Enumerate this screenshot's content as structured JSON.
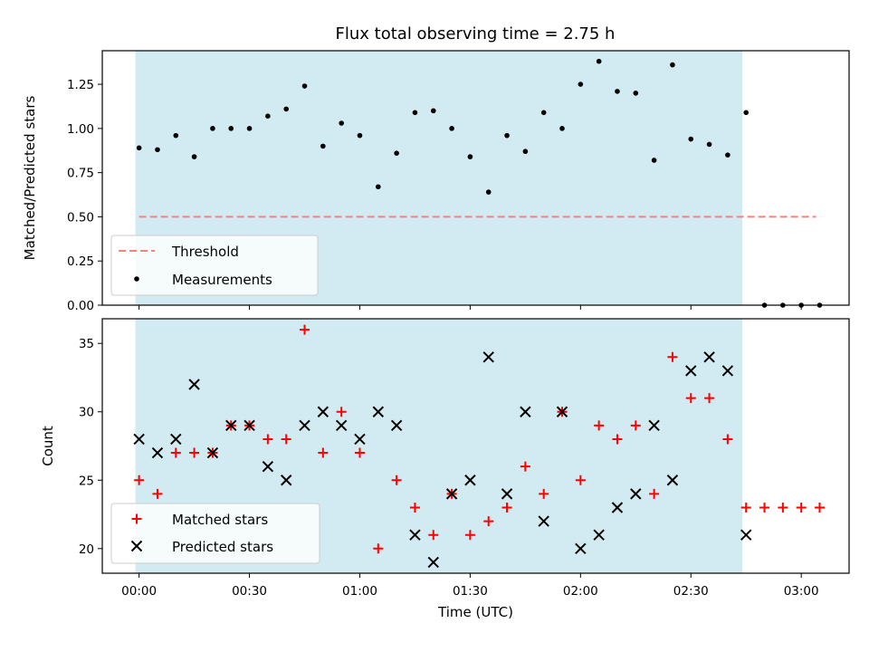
{
  "title": "Flux total observing time = 2.75 h",
  "colors": {
    "shade": "#add8e6",
    "threshold": "#ff7f7f",
    "measurement": "#000000",
    "matched": "#ff0000",
    "predicted": "#000000"
  },
  "chart_data": [
    {
      "type": "scatter",
      "ylabel": "Matched/Predicted stars",
      "xlabel": "",
      "x_unit": "minutes after 00:00 UTC",
      "xlim": [
        -10,
        193
      ],
      "ylim": [
        0,
        1.44
      ],
      "yticks": [
        0.0,
        0.25,
        0.5,
        0.75,
        1.0,
        1.25
      ],
      "ytick_labels": [
        "0.00",
        "0.25",
        "0.50",
        "0.75",
        "1.00",
        "1.25"
      ],
      "observing_window": [
        -1,
        164
      ],
      "threshold": {
        "name": "Threshold",
        "value": 0.5,
        "x_range": [
          0,
          184
        ]
      },
      "legend": {
        "placement": "lower-left",
        "entries": [
          "Threshold",
          "Measurements"
        ]
      },
      "series": [
        {
          "name": "Measurements",
          "x": [
            0,
            5,
            10,
            15,
            20,
            25,
            30,
            35,
            40,
            45,
            50,
            55,
            60,
            65,
            70,
            75,
            80,
            85,
            90,
            95,
            100,
            105,
            110,
            115,
            120,
            125,
            130,
            135,
            140,
            145,
            150,
            155,
            160,
            165,
            170,
            175,
            180,
            185
          ],
          "values": [
            0.89,
            0.88,
            0.96,
            0.84,
            1.0,
            1.0,
            1.0,
            1.07,
            1.11,
            1.24,
            0.9,
            1.03,
            0.96,
            0.67,
            0.86,
            1.09,
            1.1,
            1.0,
            0.84,
            0.64,
            0.96,
            0.87,
            1.09,
            1.0,
            1.25,
            1.38,
            1.21,
            1.2,
            0.82,
            1.36,
            0.94,
            0.91,
            0.85,
            1.09,
            0.0,
            0.0,
            0.0,
            0.0
          ]
        }
      ]
    },
    {
      "type": "scatter",
      "ylabel": "Count",
      "xlabel": "Time (UTC)",
      "x_unit": "minutes after 00:00 UTC",
      "xlim": [
        -10,
        193
      ],
      "ylim": [
        18.2,
        36.8
      ],
      "yticks": [
        20,
        25,
        30,
        35
      ],
      "ytick_labels": [
        "20",
        "25",
        "30",
        "35"
      ],
      "xticks": [
        0,
        30,
        60,
        90,
        120,
        150,
        180
      ],
      "xtick_labels": [
        "00:00",
        "00:30",
        "01:00",
        "01:30",
        "02:00",
        "02:30",
        "03:00"
      ],
      "observing_window": [
        -1,
        164
      ],
      "legend": {
        "placement": "lower-left",
        "entries": [
          "Matched stars",
          "Predicted stars"
        ]
      },
      "series": [
        {
          "name": "Matched stars",
          "marker": "plus",
          "x": [
            0,
            5,
            10,
            15,
            20,
            25,
            30,
            35,
            40,
            45,
            50,
            55,
            60,
            65,
            70,
            75,
            80,
            85,
            90,
            95,
            100,
            105,
            110,
            115,
            120,
            125,
            130,
            135,
            140,
            145,
            150,
            155,
            160,
            165,
            170,
            175,
            180,
            185
          ],
          "values": [
            25,
            24,
            27,
            27,
            27,
            29,
            29,
            28,
            28,
            36,
            27,
            30,
            27,
            20,
            25,
            23,
            21,
            24,
            21,
            22,
            23,
            26,
            24,
            30,
            25,
            29,
            28,
            29,
            24,
            34,
            31,
            31,
            28,
            23,
            23,
            23,
            23,
            23
          ]
        },
        {
          "name": "Predicted stars",
          "marker": "x",
          "x": [
            0,
            5,
            10,
            15,
            20,
            25,
            30,
            35,
            40,
            45,
            50,
            55,
            60,
            65,
            70,
            75,
            80,
            85,
            90,
            95,
            100,
            105,
            110,
            115,
            120,
            125,
            130,
            135,
            140,
            145,
            150,
            155,
            160,
            165
          ],
          "values": [
            28,
            27,
            28,
            32,
            27,
            29,
            29,
            26,
            25,
            29,
            30,
            29,
            28,
            30,
            29,
            21,
            19,
            24,
            25,
            34,
            24,
            30,
            22,
            30,
            20,
            21,
            23,
            24,
            29,
            25,
            33,
            34,
            33,
            21
          ]
        }
      ]
    }
  ]
}
